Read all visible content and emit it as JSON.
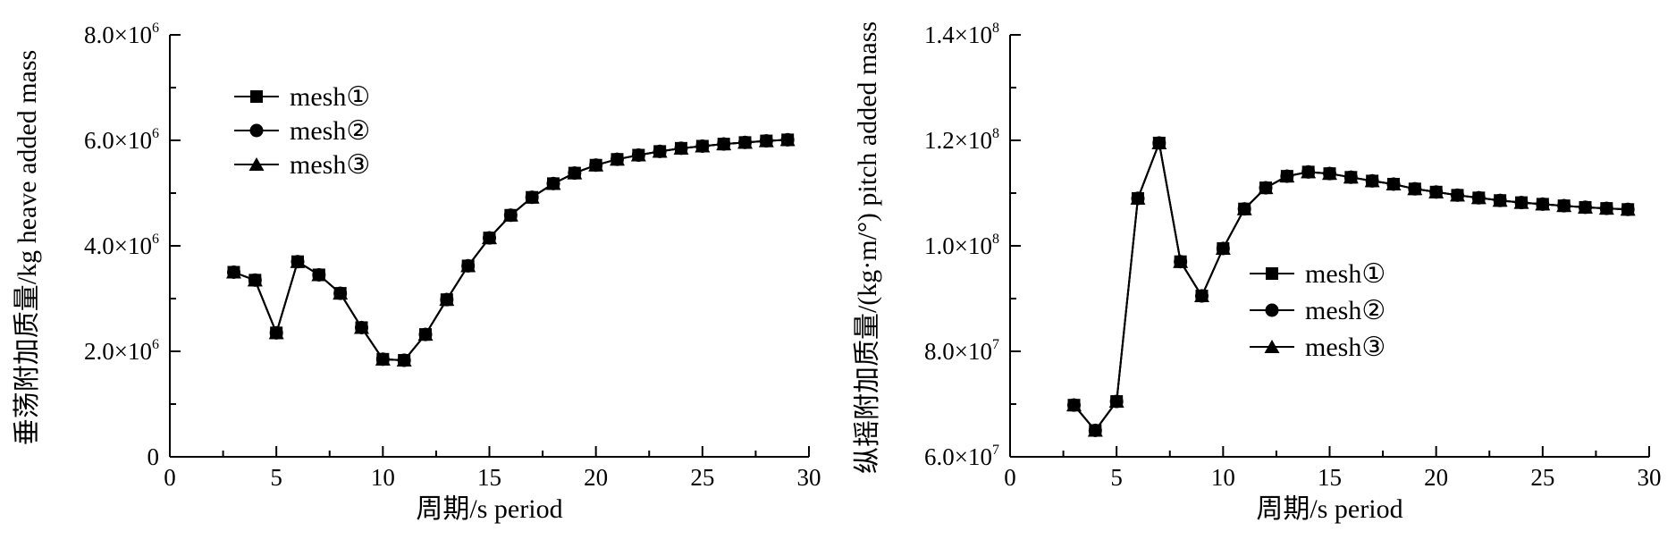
{
  "chart_data": [
    {
      "type": "line",
      "xlabel": "周期/s period",
      "ylabel": "垂荡附加质量/kg heave added mass",
      "xlim": [
        0,
        30
      ],
      "ylim": [
        0,
        8000000
      ],
      "xticks": [
        "0",
        "5",
        "10",
        "15",
        "20",
        "25",
        "30"
      ],
      "yticks": [
        {
          "base": "0",
          "exp": ""
        },
        {
          "base": "2.0×10",
          "exp": "6"
        },
        {
          "base": "4.0×10",
          "exp": "6"
        },
        {
          "base": "6.0×10",
          "exp": "6"
        },
        {
          "base": "8.0×10",
          "exp": "6"
        }
      ],
      "legend_position": "top-left",
      "x": [
        3,
        4,
        5,
        6,
        7,
        8,
        9,
        10,
        11,
        12,
        13,
        14,
        15,
        16,
        17,
        18,
        19,
        20,
        21,
        22,
        23,
        24,
        25,
        26,
        27,
        28,
        29
      ],
      "series": [
        {
          "name": "mesh①",
          "marker": "square",
          "values": [
            3500000,
            3350000,
            2350000,
            3700000,
            3450000,
            3100000,
            2450000,
            1850000,
            1830000,
            2320000,
            2980000,
            3620000,
            4150000,
            4580000,
            4920000,
            5180000,
            5380000,
            5530000,
            5640000,
            5720000,
            5790000,
            5850000,
            5890000,
            5930000,
            5960000,
            5990000,
            6010000
          ]
        },
        {
          "name": "mesh②",
          "marker": "circle",
          "values": [
            3500000,
            3350000,
            2350000,
            3700000,
            3450000,
            3100000,
            2450000,
            1850000,
            1830000,
            2320000,
            2980000,
            3620000,
            4150000,
            4580000,
            4920000,
            5180000,
            5380000,
            5530000,
            5640000,
            5720000,
            5790000,
            5850000,
            5890000,
            5930000,
            5960000,
            5990000,
            6010000
          ]
        },
        {
          "name": "mesh③",
          "marker": "triangle",
          "values": [
            3500000,
            3350000,
            2350000,
            3700000,
            3450000,
            3100000,
            2450000,
            1850000,
            1830000,
            2320000,
            2980000,
            3620000,
            4150000,
            4580000,
            4920000,
            5180000,
            5380000,
            5530000,
            5640000,
            5720000,
            5790000,
            5850000,
            5890000,
            5930000,
            5960000,
            5990000,
            6010000
          ]
        }
      ]
    },
    {
      "type": "line",
      "xlabel": "周期/s period",
      "ylabel": "纵摇附加质量/(kg·m/°) pitch added mass",
      "xlim": [
        0,
        30
      ],
      "ylim": [
        60000000,
        140000000
      ],
      "xticks": [
        "0",
        "5",
        "10",
        "15",
        "20",
        "25",
        "30"
      ],
      "yticks": [
        {
          "base": "6.0×10",
          "exp": "7"
        },
        {
          "base": "8.0×10",
          "exp": "7"
        },
        {
          "base": "1.0×10",
          "exp": "8"
        },
        {
          "base": "1.2×10",
          "exp": "8"
        },
        {
          "base": "1.4×10",
          "exp": "8"
        }
      ],
      "legend_position": "center-right",
      "x": [
        3,
        4,
        5,
        6,
        7,
        8,
        9,
        10,
        11,
        12,
        13,
        14,
        15,
        16,
        17,
        18,
        19,
        20,
        21,
        22,
        23,
        24,
        25,
        26,
        27,
        28,
        29
      ],
      "series": [
        {
          "name": "mesh①",
          "marker": "square",
          "values": [
            69800000,
            65000000,
            70500000,
            109000000,
            119500000,
            97000000,
            90500000,
            99500000,
            107000000,
            111000000,
            113200000,
            114000000,
            113700000,
            113000000,
            112300000,
            111700000,
            110800000,
            110200000,
            109600000,
            109100000,
            108600000,
            108200000,
            107900000,
            107600000,
            107300000,
            107100000,
            106900000
          ]
        },
        {
          "name": "mesh②",
          "marker": "circle",
          "values": [
            69800000,
            65000000,
            70500000,
            109000000,
            119500000,
            97000000,
            90500000,
            99500000,
            107000000,
            111000000,
            113200000,
            114000000,
            113700000,
            113000000,
            112300000,
            111700000,
            110800000,
            110200000,
            109600000,
            109100000,
            108600000,
            108200000,
            107900000,
            107600000,
            107300000,
            107100000,
            106900000
          ]
        },
        {
          "name": "mesh③",
          "marker": "triangle",
          "values": [
            69800000,
            65000000,
            70500000,
            109000000,
            119500000,
            97000000,
            90500000,
            99500000,
            107000000,
            111000000,
            113200000,
            114000000,
            113700000,
            113000000,
            112300000,
            111700000,
            110800000,
            110200000,
            109600000,
            109100000,
            108600000,
            108200000,
            107900000,
            107600000,
            107300000,
            107100000,
            106900000
          ]
        }
      ]
    }
  ]
}
